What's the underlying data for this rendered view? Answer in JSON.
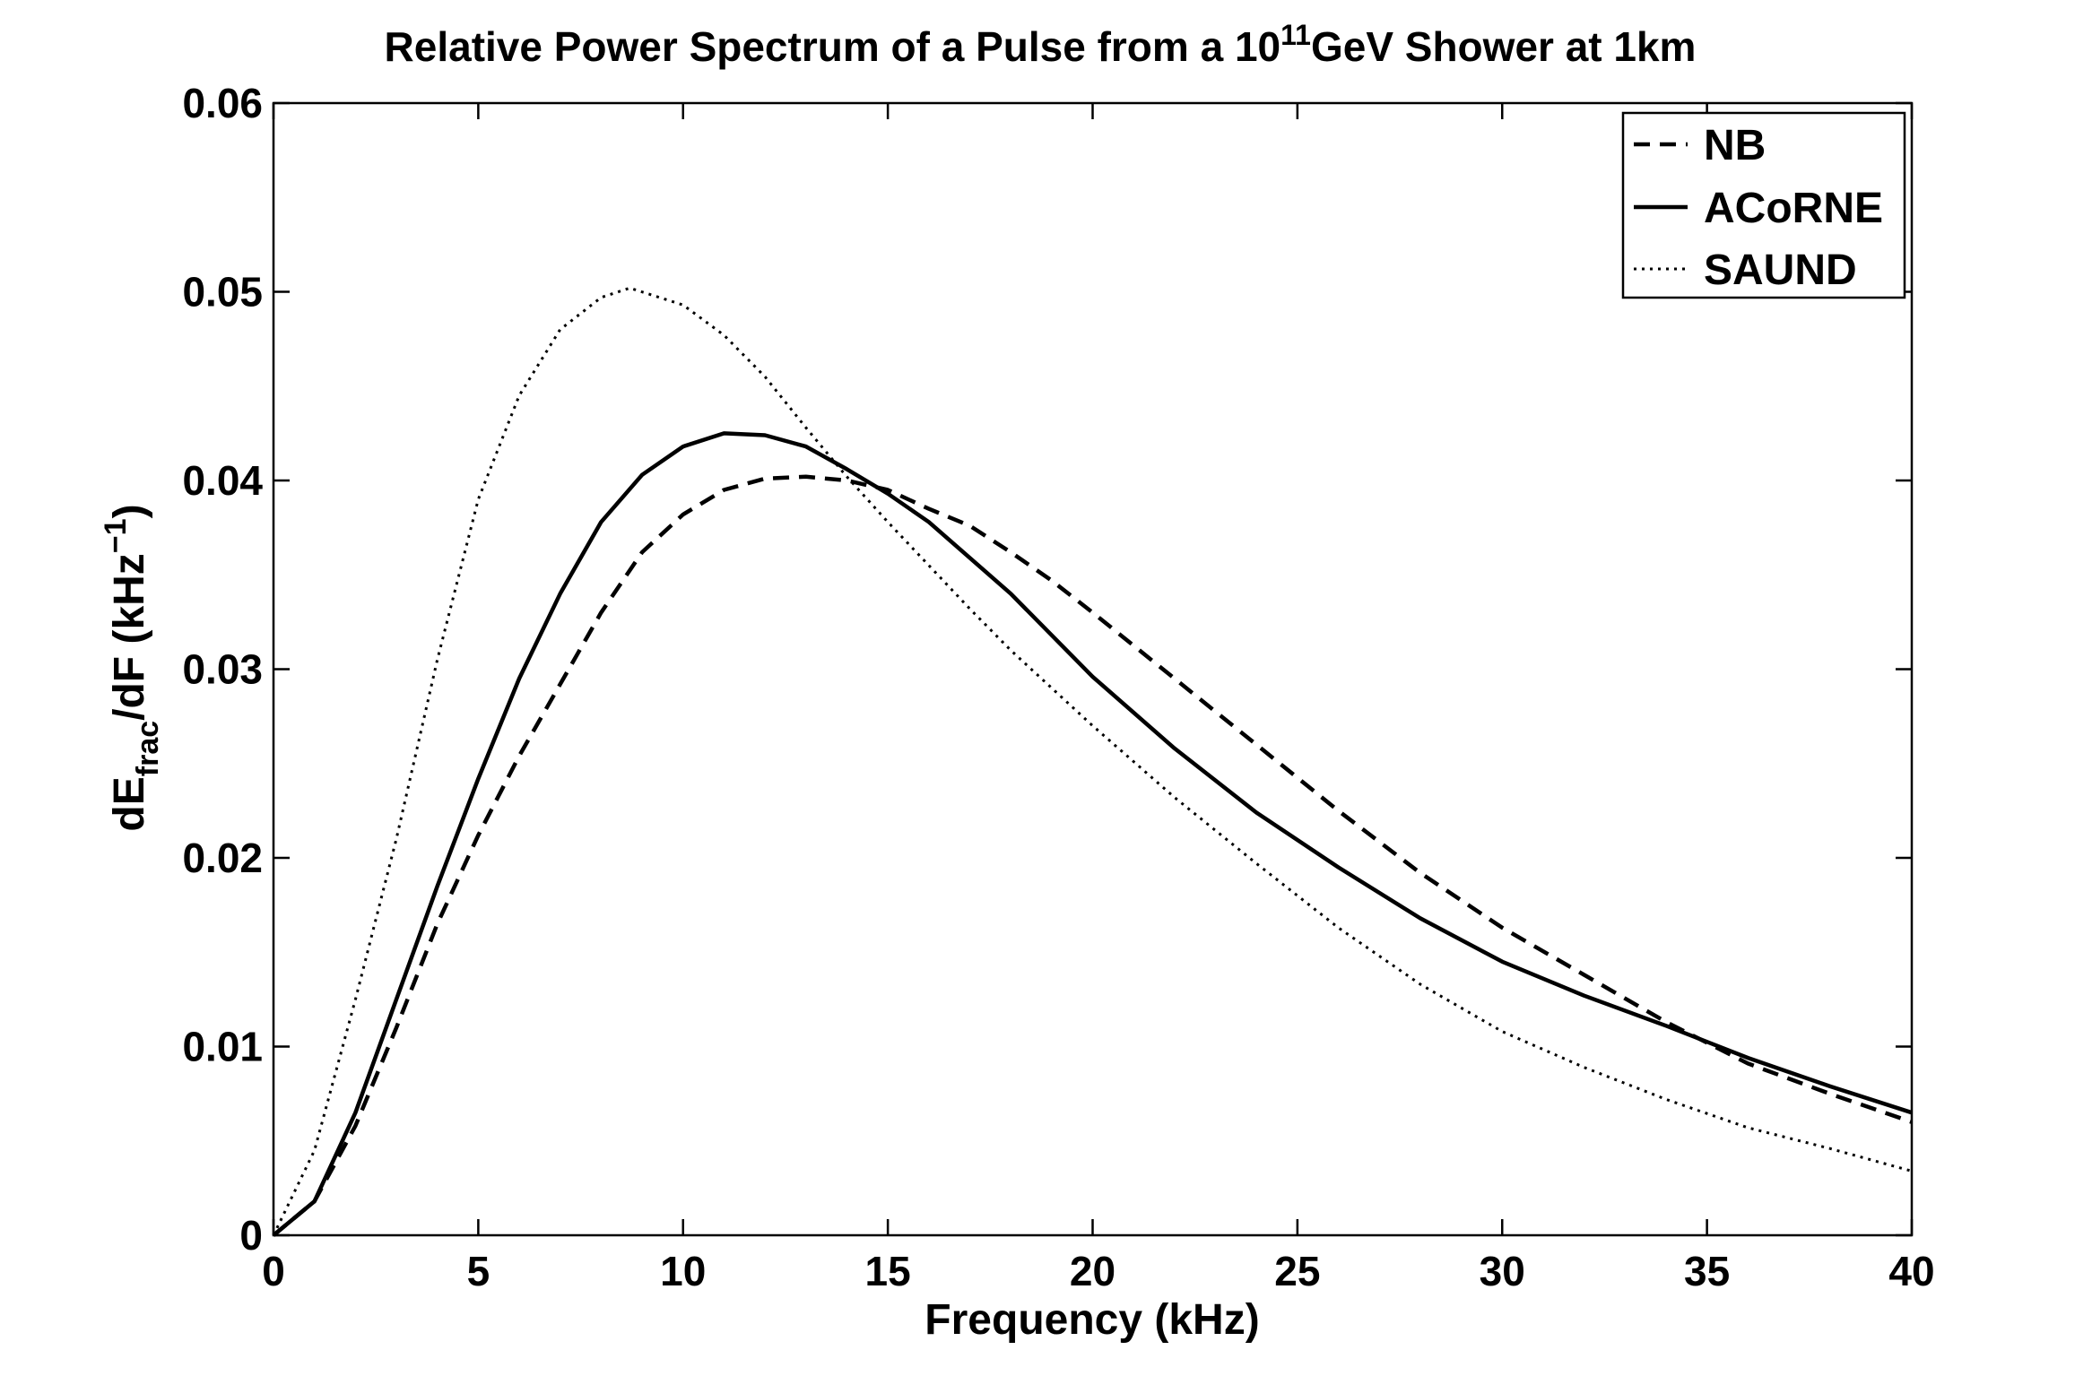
{
  "chart_data": {
    "type": "line",
    "title": {
      "pre": "Relative Power Spectrum of a Pulse from a 10",
      "sup": "11",
      "post": "GeV Shower at 1km"
    },
    "xlabel": "Frequency (kHz)",
    "ylabel": {
      "pre": "dE",
      "sub": "frac",
      "mid": "/dF (kHz",
      "sup": "−1",
      "post": ")"
    },
    "xlim": [
      0,
      40
    ],
    "ylim": [
      0,
      0.06
    ],
    "xticks": [
      "0",
      "5",
      "10",
      "15",
      "20",
      "25",
      "30",
      "35",
      "40"
    ],
    "yticks": [
      "0",
      "0.01",
      "0.02",
      "0.03",
      "0.04",
      "0.05",
      "0.06"
    ],
    "grid": false,
    "legend_position": "top-right",
    "series": [
      {
        "name": "NB",
        "style": "dashed",
        "color": "#000000",
        "x": [
          0,
          1,
          2,
          3,
          4,
          5,
          6,
          7,
          8,
          9,
          10,
          11,
          12,
          13,
          14,
          15,
          16,
          17,
          18,
          19,
          20,
          22,
          24,
          26,
          28,
          30,
          32,
          34,
          36,
          38,
          40
        ],
        "y": [
          0,
          0.0018,
          0.0058,
          0.011,
          0.0165,
          0.0212,
          0.0254,
          0.0292,
          0.033,
          0.0362,
          0.0382,
          0.0395,
          0.0401,
          0.0402,
          0.04,
          0.0395,
          0.0385,
          0.0376,
          0.0362,
          0.0347,
          0.033,
          0.0295,
          0.026,
          0.0225,
          0.0192,
          0.0163,
          0.0138,
          0.0113,
          0.0091,
          0.0075,
          0.006
        ]
      },
      {
        "name": "ACoRNE",
        "style": "solid",
        "color": "#000000",
        "x": [
          0,
          1,
          2,
          3,
          4,
          5,
          6,
          7,
          8,
          9,
          10,
          11,
          12,
          13,
          14,
          15,
          16,
          17,
          18,
          19,
          20,
          22,
          24,
          26,
          28,
          30,
          32,
          34,
          36,
          38,
          40
        ],
        "y": [
          0,
          0.0018,
          0.0065,
          0.0125,
          0.0185,
          0.0242,
          0.0295,
          0.034,
          0.0378,
          0.0403,
          0.0418,
          0.0425,
          0.0424,
          0.0418,
          0.0406,
          0.0393,
          0.0378,
          0.0359,
          0.034,
          0.0318,
          0.0296,
          0.0258,
          0.0224,
          0.0195,
          0.0168,
          0.0145,
          0.0127,
          0.0111,
          0.0094,
          0.0079,
          0.0065
        ]
      },
      {
        "name": "SAUND",
        "style": "dotted",
        "color": "#000000",
        "x": [
          0,
          1,
          2,
          3,
          4,
          5,
          6,
          7,
          8,
          8.7,
          10,
          11,
          12,
          13,
          14,
          15,
          16,
          17,
          18,
          19,
          20,
          22,
          24,
          26,
          28,
          30,
          32,
          34,
          36,
          38,
          40
        ],
        "y": [
          0,
          0.0045,
          0.0125,
          0.021,
          0.0305,
          0.039,
          0.0445,
          0.048,
          0.0497,
          0.0502,
          0.0493,
          0.0477,
          0.0455,
          0.0428,
          0.0402,
          0.0378,
          0.0355,
          0.0332,
          0.031,
          0.029,
          0.027,
          0.0232,
          0.0197,
          0.0163,
          0.0133,
          0.0108,
          0.0089,
          0.0072,
          0.0057,
          0.0046,
          0.0034
        ]
      }
    ]
  }
}
